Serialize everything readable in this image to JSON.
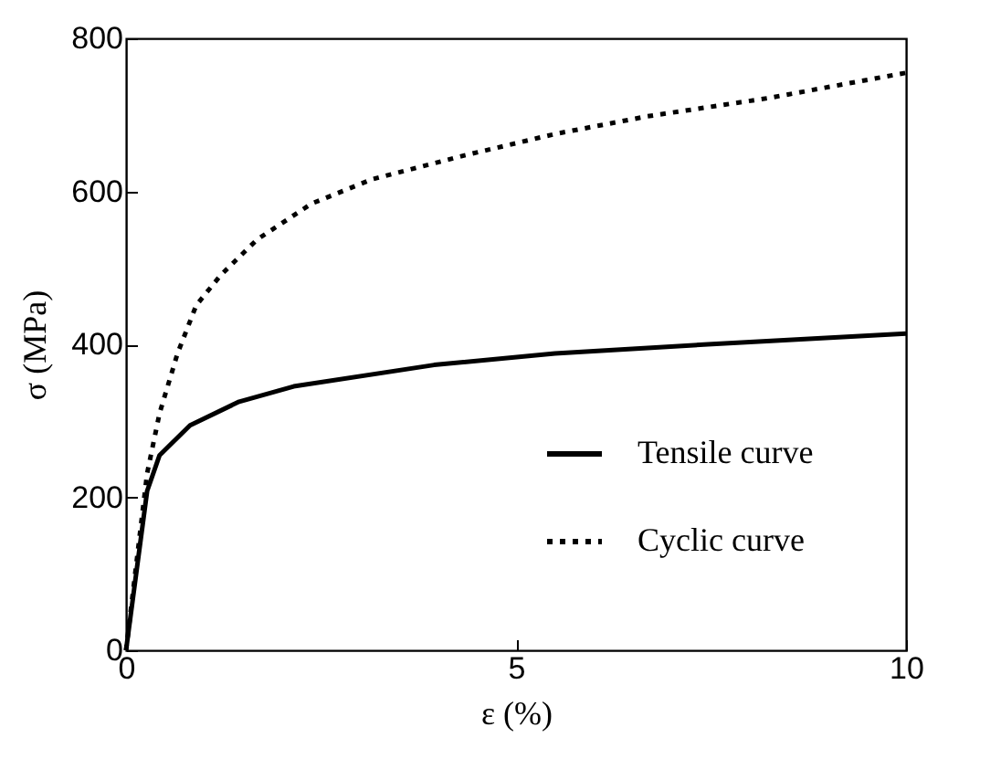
{
  "chart_data": {
    "type": "line",
    "xlabel": "ε (%)",
    "ylabel": "σ (MPa)",
    "xlim": [
      0,
      10
    ],
    "xticks": [
      0,
      5,
      10
    ],
    "ylim": [
      0,
      800
    ],
    "yticks": [
      0,
      200,
      400,
      600,
      800
    ],
    "grid": false,
    "legend": "bottom right",
    "marker": "none",
    "series": [
      {
        "name": "Tensile curve",
        "color": "#000000",
        "line_style": "solid",
        "x": [
          0,
          0.27,
          0.43,
          0.82,
          1.45,
          2.15,
          3.95,
          5.5,
          7.46,
          10
        ],
        "values": [
          0,
          208,
          255,
          294,
          325,
          345,
          373,
          388,
          400,
          414
        ]
      },
      {
        "name": "Cyclic curve",
        "color": "#000000",
        "line_style": "dotted",
        "x": [
          0,
          0.27,
          0.43,
          0.66,
          0.9,
          1.21,
          1.68,
          2.38,
          3.16,
          4.34,
          5.5,
          6.68,
          8.24,
          10
        ],
        "values": [
          0,
          231,
          310,
          388,
          451,
          490,
          537,
          584,
          616,
          647,
          675,
          698,
          722,
          755
        ]
      }
    ]
  }
}
